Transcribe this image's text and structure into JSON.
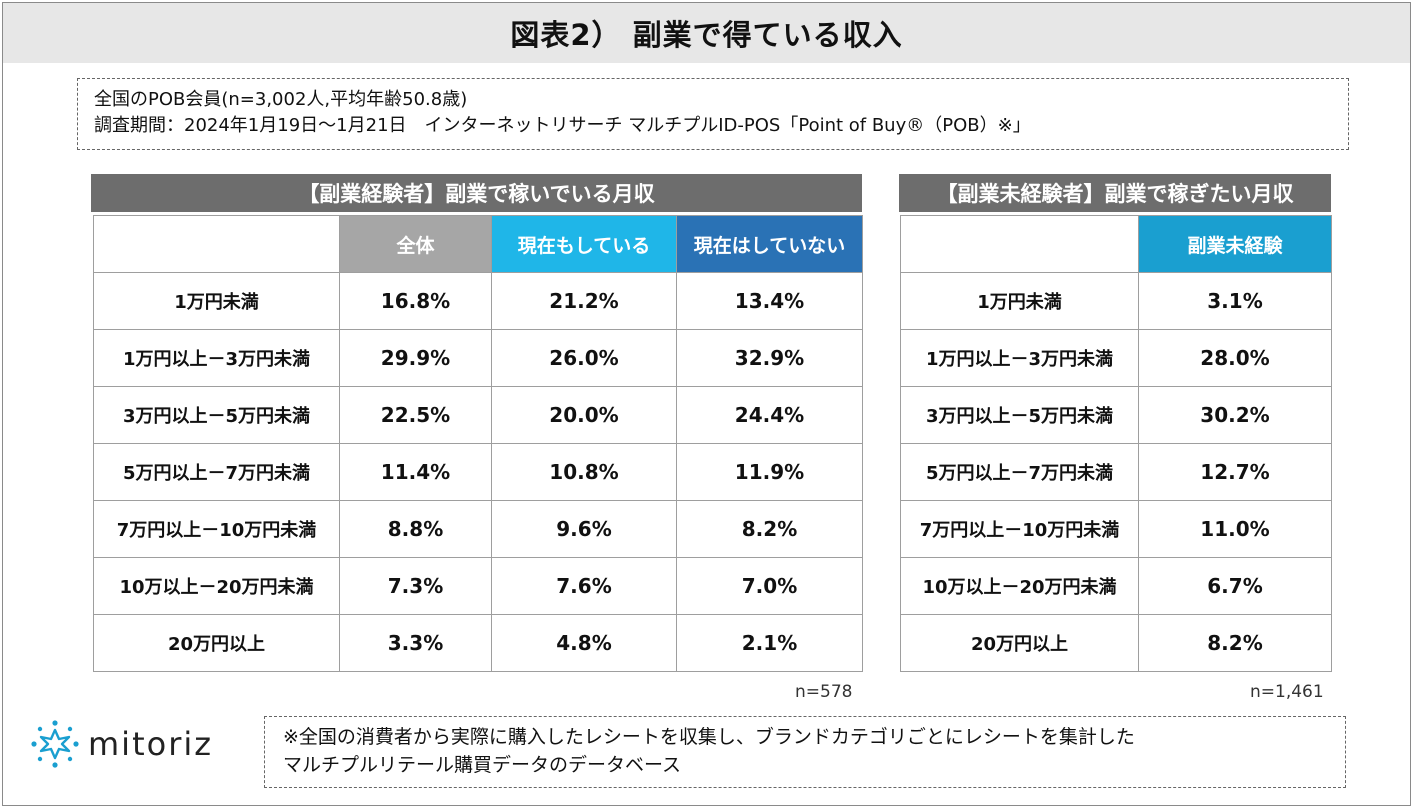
{
  "title": "図表2） 副業で得ている収入",
  "meta": {
    "line1": "全国のPOB会員(n=3,002人,平均年齢50.8歳)",
    "line2": "調査期間：2024年1月19日～1月21日　インターネットリサーチ マルチプルID-POS「Point of Buy®（POB）※」"
  },
  "colors": {
    "zentai": "#a6a6a6",
    "genzai_shiteiru": "#1fb6e8",
    "genzai_shiteinai": "#2a72b5",
    "fukugyo_mikeiken": "#1a9fd0",
    "section_header": "#6d6d6d"
  },
  "chart_data": [
    {
      "type": "table",
      "title": "【副業経験者】副業で稼いでいる月収",
      "columns": [
        "全体",
        "現在もしている",
        "現在はしていない"
      ],
      "rows": [
        {
          "label": "1万円未満",
          "values": [
            "16.8%",
            "21.2%",
            "13.4%"
          ]
        },
        {
          "label": "1万円以上－3万円未満",
          "values": [
            "29.9%",
            "26.0%",
            "32.9%"
          ]
        },
        {
          "label": "3万円以上－5万円未満",
          "values": [
            "22.5%",
            "20.0%",
            "24.4%"
          ]
        },
        {
          "label": "5万円以上－7万円未満",
          "values": [
            "11.4%",
            "10.8%",
            "11.9%"
          ]
        },
        {
          "label": "7万円以上－10万円未満",
          "values": [
            "8.8%",
            "9.6%",
            "8.2%"
          ]
        },
        {
          "label": "10万以上－20万円未満",
          "values": [
            "7.3%",
            "7.6%",
            "7.0%"
          ]
        },
        {
          "label": "20万円以上",
          "values": [
            "3.3%",
            "4.8%",
            "2.1%"
          ]
        }
      ],
      "n": "n=578"
    },
    {
      "type": "table",
      "title": "【副業未経験者】副業で稼ぎたい月収",
      "columns": [
        "副業未経験"
      ],
      "rows": [
        {
          "label": "1万円未満",
          "values": [
            "3.1%"
          ]
        },
        {
          "label": "1万円以上－3万円未満",
          "values": [
            "28.0%"
          ]
        },
        {
          "label": "3万円以上－5万円未満",
          "values": [
            "30.2%"
          ]
        },
        {
          "label": "5万円以上－7万円未満",
          "values": [
            "12.7%"
          ]
        },
        {
          "label": "7万円以上－10万円未満",
          "values": [
            "11.0%"
          ]
        },
        {
          "label": "10万以上－20万円未満",
          "values": [
            "6.7%"
          ]
        },
        {
          "label": "20万円以上",
          "values": [
            "8.2%"
          ]
        }
      ],
      "n": "n=1,461"
    }
  ],
  "logo": {
    "text": "mitoriz",
    "icon": "sparkle-ring-icon"
  },
  "note": {
    "line1": "※全国の消費者から実際に購入したレシートを収集し、ブランドカテゴリごとにレシートを集計した",
    "line2": "マルチプルリテール購買データのデータベース"
  }
}
